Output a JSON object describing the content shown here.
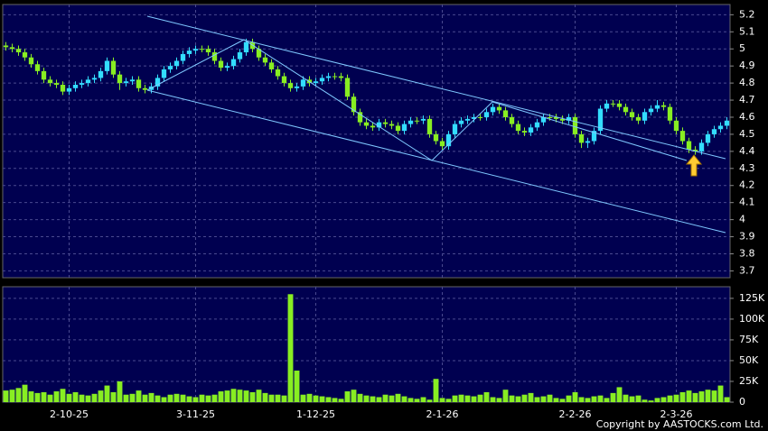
{
  "chart_data": [
    {
      "type": "candlestick",
      "categories": [
        null,
        null,
        null,
        null,
        null,
        null,
        null,
        null,
        null,
        null,
        "2-10-25",
        null,
        null,
        null,
        null,
        null,
        null,
        null,
        null,
        null,
        null,
        null,
        null,
        null,
        null,
        null,
        null,
        null,
        null,
        null,
        "3-11-25",
        null,
        null,
        null,
        null,
        null,
        null,
        null,
        null,
        null,
        null,
        null,
        null,
        null,
        null,
        null,
        null,
        null,
        null,
        "1-12-25",
        null,
        null,
        null,
        null,
        null,
        null,
        null,
        null,
        null,
        null,
        null,
        null,
        null,
        null,
        null,
        null,
        null,
        null,
        null,
        "2-1-26",
        null,
        null,
        null,
        null,
        null,
        null,
        null,
        null,
        null,
        null,
        null,
        null,
        null,
        null,
        null,
        null,
        null,
        null,
        null,
        null,
        "2-2-26",
        null,
        null,
        null,
        null,
        null,
        null,
        null,
        null,
        null,
        null,
        null,
        null,
        null,
        null,
        null,
        "2-3-26",
        null,
        null,
        null,
        null,
        null,
        null,
        null,
        null
      ],
      "ohlc": [
        [
          5.02,
          5.04,
          4.99,
          5.01
        ],
        [
          5.01,
          5.03,
          4.98,
          5.0
        ],
        [
          5.0,
          5.02,
          4.96,
          4.98
        ],
        [
          4.98,
          5.0,
          4.93,
          4.95
        ],
        [
          4.95,
          4.97,
          4.89,
          4.91
        ],
        [
          4.91,
          4.93,
          4.85,
          4.87
        ],
        [
          4.87,
          4.89,
          4.8,
          4.82
        ],
        [
          4.82,
          4.84,
          4.78,
          4.8
        ],
        [
          4.8,
          4.82,
          4.77,
          4.79
        ],
        [
          4.79,
          4.81,
          4.73,
          4.75
        ],
        [
          4.75,
          4.79,
          4.73,
          4.77
        ],
        [
          4.77,
          4.81,
          4.75,
          4.79
        ],
        [
          4.79,
          4.82,
          4.77,
          4.8
        ],
        [
          4.8,
          4.84,
          4.78,
          4.82
        ],
        [
          4.82,
          4.85,
          4.8,
          4.83
        ],
        [
          4.83,
          4.89,
          4.81,
          4.87
        ],
        [
          4.87,
          4.95,
          4.85,
          4.93
        ],
        [
          4.93,
          4.95,
          4.83,
          4.85
        ],
        [
          4.85,
          4.87,
          4.76,
          4.8
        ],
        [
          4.8,
          4.83,
          4.78,
          4.81
        ],
        [
          4.81,
          4.84,
          4.79,
          4.82
        ],
        [
          4.82,
          4.84,
          4.75,
          4.77
        ],
        [
          4.77,
          4.79,
          4.74,
          4.76
        ],
        [
          4.76,
          4.8,
          4.74,
          4.78
        ],
        [
          4.78,
          4.85,
          4.76,
          4.83
        ],
        [
          4.83,
          4.9,
          4.81,
          4.88
        ],
        [
          4.88,
          4.92,
          4.86,
          4.9
        ],
        [
          4.9,
          4.95,
          4.88,
          4.93
        ],
        [
          4.93,
          4.99,
          4.91,
          4.97
        ],
        [
          4.97,
          5.01,
          4.95,
          4.99
        ],
        [
          4.99,
          5.02,
          4.97,
          5.0
        ],
        [
          5.0,
          5.02,
          4.98,
          5.0
        ],
        [
          5.0,
          5.02,
          4.96,
          4.98
        ],
        [
          4.98,
          5.0,
          4.91,
          4.93
        ],
        [
          4.93,
          4.95,
          4.87,
          4.89
        ],
        [
          4.89,
          4.92,
          4.87,
          4.9
        ],
        [
          4.9,
          4.96,
          4.88,
          4.94
        ],
        [
          4.94,
          5.0,
          4.92,
          4.98
        ],
        [
          4.98,
          5.06,
          4.96,
          5.04
        ],
        [
          5.04,
          5.06,
          4.98,
          5.0
        ],
        [
          5.0,
          5.02,
          4.93,
          4.95
        ],
        [
          4.95,
          4.97,
          4.9,
          4.92
        ],
        [
          4.92,
          4.94,
          4.86,
          4.88
        ],
        [
          4.88,
          4.9,
          4.82,
          4.84
        ],
        [
          4.84,
          4.86,
          4.78,
          4.8
        ],
        [
          4.8,
          4.82,
          4.75,
          4.77
        ],
        [
          4.77,
          4.8,
          4.75,
          4.78
        ],
        [
          4.78,
          4.84,
          4.76,
          4.82
        ],
        [
          4.82,
          4.84,
          4.78,
          4.8
        ],
        [
          4.8,
          4.83,
          4.78,
          4.81
        ],
        [
          4.81,
          4.85,
          4.79,
          4.83
        ],
        [
          4.83,
          4.86,
          4.81,
          4.84
        ],
        [
          4.84,
          4.86,
          4.82,
          4.84
        ],
        [
          4.84,
          4.86,
          4.81,
          4.83
        ],
        [
          4.83,
          4.85,
          4.7,
          4.72
        ],
        [
          4.72,
          4.74,
          4.61,
          4.63
        ],
        [
          4.63,
          4.65,
          4.55,
          4.57
        ],
        [
          4.57,
          4.59,
          4.53,
          4.55
        ],
        [
          4.55,
          4.57,
          4.52,
          4.54
        ],
        [
          4.54,
          4.59,
          4.52,
          4.57
        ],
        [
          4.57,
          4.59,
          4.54,
          4.56
        ],
        [
          4.56,
          4.58,
          4.53,
          4.55
        ],
        [
          4.55,
          4.57,
          4.5,
          4.52
        ],
        [
          4.52,
          4.58,
          4.5,
          4.56
        ],
        [
          4.56,
          4.6,
          4.54,
          4.58
        ],
        [
          4.58,
          4.6,
          4.56,
          4.58
        ],
        [
          4.58,
          4.61,
          4.56,
          4.59
        ],
        [
          4.59,
          4.61,
          4.48,
          4.5
        ],
        [
          4.5,
          4.52,
          4.44,
          4.46
        ],
        [
          4.46,
          4.48,
          4.41,
          4.43
        ],
        [
          4.43,
          4.52,
          4.41,
          4.5
        ],
        [
          4.5,
          4.58,
          4.48,
          4.56
        ],
        [
          4.56,
          4.6,
          4.54,
          4.58
        ],
        [
          4.58,
          4.61,
          4.56,
          4.59
        ],
        [
          4.59,
          4.62,
          4.57,
          4.6
        ],
        [
          4.6,
          4.62,
          4.58,
          4.6
        ],
        [
          4.6,
          4.65,
          4.58,
          4.63
        ],
        [
          4.63,
          4.68,
          4.61,
          4.66
        ],
        [
          4.66,
          4.68,
          4.62,
          4.64
        ],
        [
          4.64,
          4.66,
          4.58,
          4.6
        ],
        [
          4.6,
          4.62,
          4.54,
          4.56
        ],
        [
          4.56,
          4.58,
          4.5,
          4.52
        ],
        [
          4.52,
          4.54,
          4.49,
          4.51
        ],
        [
          4.51,
          4.56,
          4.49,
          4.54
        ],
        [
          4.54,
          4.59,
          4.52,
          4.57
        ],
        [
          4.57,
          4.62,
          4.55,
          4.6
        ],
        [
          4.6,
          4.62,
          4.58,
          4.6
        ],
        [
          4.6,
          4.62,
          4.57,
          4.59
        ],
        [
          4.59,
          4.61,
          4.56,
          4.58
        ],
        [
          4.58,
          4.62,
          4.56,
          4.6
        ],
        [
          4.6,
          4.62,
          4.48,
          4.5
        ],
        [
          4.5,
          4.52,
          4.42,
          4.45
        ],
        [
          4.45,
          4.48,
          4.42,
          4.46
        ],
        [
          4.46,
          4.54,
          4.44,
          4.52
        ],
        [
          4.52,
          4.67,
          4.5,
          4.65
        ],
        [
          4.65,
          4.7,
          4.63,
          4.68
        ],
        [
          4.68,
          4.7,
          4.66,
          4.68
        ],
        [
          4.68,
          4.7,
          4.64,
          4.66
        ],
        [
          4.66,
          4.68,
          4.61,
          4.63
        ],
        [
          4.63,
          4.65,
          4.58,
          4.6
        ],
        [
          4.6,
          4.62,
          4.56,
          4.58
        ],
        [
          4.58,
          4.65,
          4.56,
          4.63
        ],
        [
          4.63,
          4.67,
          4.61,
          4.65
        ],
        [
          4.65,
          4.7,
          4.63,
          4.67
        ],
        [
          4.67,
          4.69,
          4.64,
          4.66
        ],
        [
          4.66,
          4.68,
          4.56,
          4.58
        ],
        [
          4.58,
          4.6,
          4.5,
          4.52
        ],
        [
          4.52,
          4.54,
          4.44,
          4.46
        ],
        [
          4.46,
          4.48,
          4.39,
          4.41
        ],
        [
          4.41,
          4.43,
          4.38,
          4.4
        ],
        [
          4.4,
          4.47,
          4.38,
          4.45
        ],
        [
          4.45,
          4.52,
          4.43,
          4.5
        ],
        [
          4.5,
          4.55,
          4.48,
          4.53
        ],
        [
          4.53,
          4.57,
          4.51,
          4.55
        ],
        [
          4.55,
          4.6,
          4.53,
          4.58
        ]
      ],
      "up_color": "#33ddff",
      "down_color": "#88ee22",
      "ylim": [
        3.66,
        5.26
      ],
      "yticks": [
        3.7,
        3.8,
        3.9,
        4,
        4.1,
        4.2,
        4.3,
        4.4,
        4.5,
        4.6,
        4.7,
        4.8,
        4.9,
        5,
        5.1,
        5.2
      ],
      "grid": true
    },
    {
      "type": "bar",
      "values": [
        14000,
        15000,
        17000,
        21000,
        13000,
        11000,
        12000,
        9000,
        13000,
        16000,
        10000,
        12000,
        9000,
        8000,
        10000,
        14000,
        20000,
        12000,
        25000,
        9000,
        10000,
        14000,
        9000,
        11000,
        8000,
        6000,
        9000,
        10000,
        9000,
        7000,
        6000,
        9000,
        8000,
        9000,
        13000,
        14000,
        16000,
        15000,
        14000,
        12000,
        15000,
        11000,
        9000,
        9000,
        8000,
        130000,
        38000,
        9000,
        10000,
        8000,
        7000,
        6000,
        5000,
        4000,
        13000,
        15000,
        10000,
        8000,
        7000,
        6000,
        9000,
        8000,
        10000,
        7000,
        5000,
        4000,
        6000,
        3000,
        28000,
        5000,
        4000,
        8000,
        9000,
        8000,
        7000,
        9000,
        12000,
        6000,
        5000,
        15000,
        8000,
        7000,
        9000,
        11000,
        6000,
        7000,
        9000,
        5000,
        4000,
        8000,
        12000,
        6000,
        5000,
        7000,
        8000,
        5000,
        11000,
        18000,
        9000,
        7000,
        8000,
        3000,
        2000,
        5000,
        6000,
        8000,
        9000,
        12000,
        14000,
        11000,
        13000,
        15000,
        14000,
        20000,
        6000
      ],
      "color": "#88ee22",
      "ylim": [
        0,
        139000
      ],
      "yticks": [
        0,
        {
          "value": 25000,
          "label": "25K"
        },
        {
          "value": 50000,
          "label": "50K"
        },
        {
          "value": 75000,
          "label": "75K"
        },
        {
          "value": 100000,
          "label": "100K"
        },
        {
          "value": 125000,
          "label": "125K"
        }
      ],
      "grid": true
    }
  ],
  "copyright": "Copyright by AASTOCKS.com Ltd."
}
